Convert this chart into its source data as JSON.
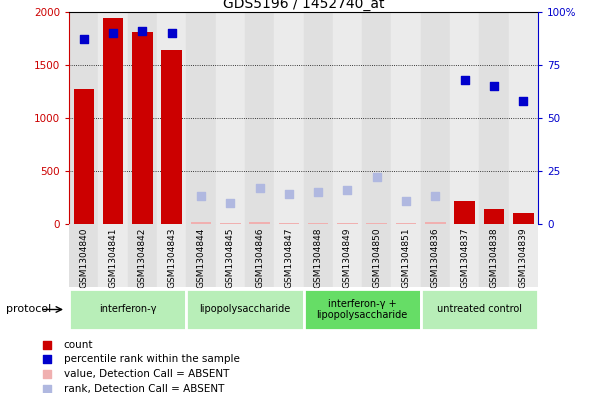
{
  "title": "GDS5196 / 1452740_at",
  "samples": [
    "GSM1304840",
    "GSM1304841",
    "GSM1304842",
    "GSM1304843",
    "GSM1304844",
    "GSM1304845",
    "GSM1304846",
    "GSM1304847",
    "GSM1304848",
    "GSM1304849",
    "GSM1304850",
    "GSM1304851",
    "GSM1304836",
    "GSM1304837",
    "GSM1304838",
    "GSM1304839"
  ],
  "count_values": [
    1270,
    1940,
    1810,
    1640,
    18,
    14,
    16,
    13,
    14,
    13,
    14,
    12,
    20,
    215,
    140,
    100
  ],
  "count_absent": [
    false,
    false,
    false,
    false,
    true,
    true,
    true,
    true,
    true,
    true,
    true,
    true,
    true,
    false,
    false,
    false
  ],
  "rank_values": [
    87,
    90,
    91,
    90,
    13,
    10,
    17,
    14,
    15,
    16,
    22,
    11,
    13,
    68,
    65,
    58
  ],
  "rank_absent": [
    false,
    false,
    false,
    false,
    true,
    true,
    true,
    true,
    true,
    true,
    true,
    true,
    true,
    false,
    false,
    false
  ],
  "protocols": [
    {
      "label": "interferon-γ",
      "start": 0,
      "end": 4,
      "color": "#b8eeb8"
    },
    {
      "label": "lipopolysaccharide",
      "start": 4,
      "end": 8,
      "color": "#b8eeb8"
    },
    {
      "label": "interferon-γ +\nlipopolysaccharide",
      "start": 8,
      "end": 12,
      "color": "#66dd66"
    },
    {
      "label": "untreated control",
      "start": 12,
      "end": 16,
      "color": "#b8eeb8"
    }
  ],
  "color_bar_present": "#cc0000",
  "color_bar_absent": "#f0b0b0",
  "color_rank_present": "#0000cc",
  "color_rank_absent": "#b0b8e0",
  "ylim_left": [
    0,
    2000
  ],
  "ylim_right": [
    0,
    100
  ],
  "yticks_left": [
    0,
    500,
    1000,
    1500,
    2000
  ],
  "yticks_right": [
    0,
    25,
    50,
    75,
    100
  ],
  "ytick_labels_right": [
    "0",
    "25",
    "50",
    "75",
    "100%"
  ],
  "col_bg_even": "#e0e0e0",
  "col_bg_odd": "#ebebeb",
  "plot_bg": "#f0f0f0"
}
